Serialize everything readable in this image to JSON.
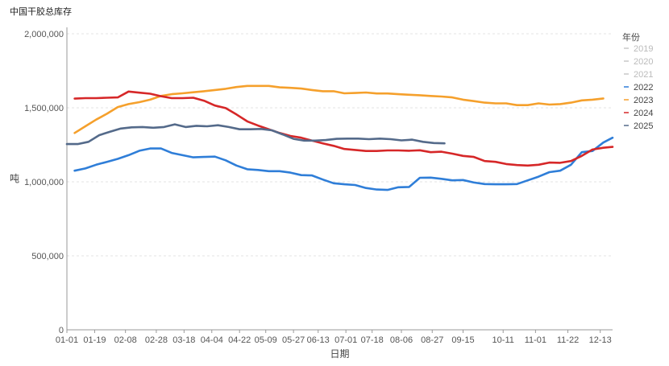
{
  "chart_data": {
    "type": "line",
    "title": "中国干胶总库存",
    "xlabel": "日期",
    "ylabel": "吨",
    "ylim": [
      0,
      2000000
    ],
    "yticks": [
      0,
      500000,
      1000000,
      1500000,
      2000000
    ],
    "ytick_labels": [
      "0",
      "500,000",
      "1,000,000",
      "1,500,000",
      "2,000,000"
    ],
    "xlim": [
      1,
      355
    ],
    "xticks": [
      1,
      19,
      39,
      59,
      77,
      95,
      113,
      130,
      148,
      164,
      182,
      199,
      218,
      238,
      258,
      284,
      305,
      326,
      347
    ],
    "xtick_labels": [
      "01-01",
      "01-19",
      "02-08",
      "02-28",
      "03-18",
      "04-04",
      "04-22",
      "05-09",
      "05-27",
      "06-13",
      "07-01",
      "07-18",
      "08-06",
      "08-27",
      "09-15",
      "10-11",
      "11-01",
      "11-22",
      "12-13"
    ],
    "grid": true,
    "legend": {
      "title": "年份",
      "position": "right"
    },
    "series": [
      {
        "name": "2019",
        "color": "#c8c8c8",
        "visible": false,
        "points": []
      },
      {
        "name": "2020",
        "color": "#c8c8c8",
        "visible": false,
        "points": []
      },
      {
        "name": "2021",
        "color": "#c8c8c8",
        "visible": false,
        "points": []
      },
      {
        "name": "2022",
        "color": "#2f7ed8",
        "visible": true,
        "points": [
          [
            6,
            1075000
          ],
          [
            13,
            1090000
          ],
          [
            20,
            1115000
          ],
          [
            27,
            1135000
          ],
          [
            34,
            1155000
          ],
          [
            41,
            1180000
          ],
          [
            48,
            1210000
          ],
          [
            55,
            1225000
          ],
          [
            62,
            1225000
          ],
          [
            69,
            1195000
          ],
          [
            76,
            1180000
          ],
          [
            83,
            1165000
          ],
          [
            90,
            1168000
          ],
          [
            97,
            1170000
          ],
          [
            104,
            1145000
          ],
          [
            111,
            1110000
          ],
          [
            118,
            1085000
          ],
          [
            125,
            1080000
          ],
          [
            132,
            1072000
          ],
          [
            139,
            1072000
          ],
          [
            146,
            1062000
          ],
          [
            153,
            1045000
          ],
          [
            160,
            1043000
          ],
          [
            167,
            1015000
          ],
          [
            174,
            990000
          ],
          [
            181,
            983000
          ],
          [
            188,
            978000
          ],
          [
            195,
            958000
          ],
          [
            202,
            948000
          ],
          [
            209,
            945000
          ],
          [
            216,
            963000
          ],
          [
            223,
            965000
          ],
          [
            230,
            1027000
          ],
          [
            237,
            1028000
          ],
          [
            244,
            1020000
          ],
          [
            251,
            1010000
          ],
          [
            258,
            1012000
          ],
          [
            265,
            995000
          ],
          [
            272,
            985000
          ],
          [
            279,
            983000
          ],
          [
            286,
            983000
          ],
          [
            293,
            985000
          ],
          [
            300,
            1010000
          ],
          [
            307,
            1035000
          ],
          [
            314,
            1065000
          ],
          [
            321,
            1075000
          ],
          [
            328,
            1115000
          ],
          [
            335,
            1200000
          ],
          [
            342,
            1208000
          ],
          [
            349,
            1265000
          ],
          [
            355,
            1298000
          ]
        ]
      },
      {
        "name": "2023",
        "color": "#f5a02c",
        "visible": true,
        "points": [
          [
            6,
            1330000
          ],
          [
            13,
            1375000
          ],
          [
            20,
            1420000
          ],
          [
            27,
            1460000
          ],
          [
            34,
            1505000
          ],
          [
            41,
            1525000
          ],
          [
            48,
            1538000
          ],
          [
            55,
            1555000
          ],
          [
            62,
            1580000
          ],
          [
            69,
            1592000
          ],
          [
            76,
            1598000
          ],
          [
            83,
            1605000
          ],
          [
            90,
            1612000
          ],
          [
            97,
            1620000
          ],
          [
            104,
            1628000
          ],
          [
            111,
            1640000
          ],
          [
            118,
            1648000
          ],
          [
            125,
            1648000
          ],
          [
            132,
            1648000
          ],
          [
            139,
            1638000
          ],
          [
            146,
            1635000
          ],
          [
            153,
            1630000
          ],
          [
            160,
            1620000
          ],
          [
            167,
            1612000
          ],
          [
            174,
            1612000
          ],
          [
            181,
            1598000
          ],
          [
            188,
            1600000
          ],
          [
            195,
            1603000
          ],
          [
            202,
            1597000
          ],
          [
            209,
            1597000
          ],
          [
            216,
            1592000
          ],
          [
            223,
            1588000
          ],
          [
            230,
            1585000
          ],
          [
            237,
            1580000
          ],
          [
            244,
            1576000
          ],
          [
            251,
            1570000
          ],
          [
            258,
            1555000
          ],
          [
            265,
            1545000
          ],
          [
            272,
            1535000
          ],
          [
            279,
            1530000
          ],
          [
            286,
            1530000
          ],
          [
            293,
            1518000
          ],
          [
            300,
            1518000
          ],
          [
            307,
            1530000
          ],
          [
            314,
            1522000
          ],
          [
            321,
            1525000
          ],
          [
            328,
            1535000
          ],
          [
            335,
            1550000
          ],
          [
            342,
            1555000
          ],
          [
            349,
            1563000
          ]
        ]
      },
      {
        "name": "2024",
        "color": "#d62728",
        "visible": true,
        "points": [
          [
            6,
            1562000
          ],
          [
            13,
            1565000
          ],
          [
            20,
            1565000
          ],
          [
            27,
            1568000
          ],
          [
            34,
            1570000
          ],
          [
            41,
            1610000
          ],
          [
            48,
            1602000
          ],
          [
            55,
            1595000
          ],
          [
            62,
            1578000
          ],
          [
            69,
            1565000
          ],
          [
            76,
            1565000
          ],
          [
            83,
            1568000
          ],
          [
            90,
            1548000
          ],
          [
            97,
            1515000
          ],
          [
            104,
            1498000
          ],
          [
            111,
            1455000
          ],
          [
            118,
            1408000
          ],
          [
            125,
            1380000
          ],
          [
            132,
            1355000
          ],
          [
            139,
            1330000
          ],
          [
            146,
            1310000
          ],
          [
            153,
            1298000
          ],
          [
            160,
            1278000
          ],
          [
            167,
            1260000
          ],
          [
            174,
            1243000
          ],
          [
            181,
            1222000
          ],
          [
            188,
            1215000
          ],
          [
            195,
            1208000
          ],
          [
            202,
            1208000
          ],
          [
            209,
            1212000
          ],
          [
            216,
            1212000
          ],
          [
            223,
            1210000
          ],
          [
            230,
            1213000
          ],
          [
            237,
            1200000
          ],
          [
            244,
            1203000
          ],
          [
            251,
            1190000
          ],
          [
            258,
            1175000
          ],
          [
            265,
            1168000
          ],
          [
            272,
            1140000
          ],
          [
            279,
            1135000
          ],
          [
            286,
            1120000
          ],
          [
            293,
            1113000
          ],
          [
            300,
            1110000
          ],
          [
            307,
            1115000
          ],
          [
            314,
            1130000
          ],
          [
            321,
            1128000
          ],
          [
            328,
            1140000
          ],
          [
            335,
            1175000
          ],
          [
            342,
            1218000
          ],
          [
            349,
            1230000
          ],
          [
            355,
            1236000
          ]
        ]
      },
      {
        "name": "2025",
        "color": "#546a8a",
        "visible": true,
        "points": [
          [
            1,
            1255000
          ],
          [
            8,
            1255000
          ],
          [
            15,
            1270000
          ],
          [
            22,
            1315000
          ],
          [
            29,
            1338000
          ],
          [
            36,
            1360000
          ],
          [
            43,
            1368000
          ],
          [
            50,
            1370000
          ],
          [
            57,
            1365000
          ],
          [
            64,
            1370000
          ],
          [
            71,
            1388000
          ],
          [
            78,
            1370000
          ],
          [
            85,
            1378000
          ],
          [
            92,
            1375000
          ],
          [
            99,
            1382000
          ],
          [
            106,
            1370000
          ],
          [
            113,
            1355000
          ],
          [
            120,
            1355000
          ],
          [
            127,
            1357000
          ],
          [
            134,
            1348000
          ],
          [
            141,
            1320000
          ],
          [
            148,
            1290000
          ],
          [
            155,
            1278000
          ],
          [
            162,
            1278000
          ],
          [
            169,
            1282000
          ],
          [
            176,
            1290000
          ],
          [
            183,
            1292000
          ],
          [
            190,
            1292000
          ],
          [
            197,
            1288000
          ],
          [
            204,
            1292000
          ],
          [
            211,
            1288000
          ],
          [
            218,
            1280000
          ],
          [
            225,
            1285000
          ],
          [
            232,
            1270000
          ],
          [
            239,
            1262000
          ],
          [
            246,
            1260000
          ]
        ]
      }
    ]
  }
}
